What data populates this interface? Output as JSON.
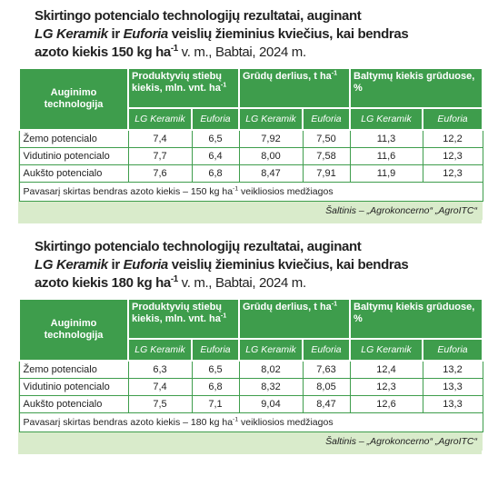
{
  "tables": [
    {
      "title": [
        [
          {
            "text": "Skirtingo potencialo technologijų rezultatai, auginant"
          }
        ],
        [
          {
            "text": "LG Keramik",
            "italic": true
          },
          {
            "text": " ir "
          },
          {
            "text": "Euforia",
            "italic": true
          },
          {
            "text": " veislių žieminius kviečius, kai bendras"
          }
        ],
        [
          {
            "text": "azoto kiekis 150 kg ha"
          },
          {
            "text": "-1",
            "sup": true
          },
          {
            "text": " v. m., Babtai, 2024 m.",
            "plain": true
          }
        ]
      ],
      "header": {
        "technology": "Auginimo technologija",
        "groups": [
          {
            "text": "Produktyvių stiebų kiekis, mln. vnt. ha",
            "sup": "-1"
          },
          {
            "text": "Grūdų derlius, t ha",
            "sup": "-1"
          },
          {
            "text": "Baltymų kiekis grūduose, %"
          }
        ],
        "varieties": [
          "LG Keramik",
          "Euforia",
          "LG Keramik",
          "Euforia",
          "LG Keramik",
          "Euforia"
        ]
      },
      "rows": [
        [
          "Žemo potencialo",
          "7,4",
          "6,5",
          "7,92",
          "7,50",
          "11,3",
          "12,2"
        ],
        [
          "Vidutinio potencialo",
          "7,7",
          "6,4",
          "8,00",
          "7,58",
          "11,6",
          "12,3"
        ],
        [
          "Aukšto potencialo",
          "7,6",
          "6,8",
          "8,47",
          "7,91",
          "11,9",
          "12,3"
        ]
      ],
      "note": {
        "text": "Pavasarį skirtas bendras azoto kiekis – 150 kg ha",
        "sup": "-1",
        "after": " veikliosios medžiagos"
      },
      "source": "Šaltinis – „Agrokoncerno“ „AgroITC“"
    },
    {
      "title": [
        [
          {
            "text": "Skirtingo potencialo technologijų rezultatai, auginant"
          }
        ],
        [
          {
            "text": "LG Keramik",
            "italic": true
          },
          {
            "text": " ir "
          },
          {
            "text": "Euforia",
            "italic": true
          },
          {
            "text": " veislių žieminius kviečius, kai bendras"
          }
        ],
        [
          {
            "text": "azoto kiekis 180 kg ha"
          },
          {
            "text": "-1",
            "sup": true
          },
          {
            "text": " v. m., Babtai, 2024 m.",
            "plain": true
          }
        ]
      ],
      "header": {
        "technology": "Auginimo technologija",
        "groups": [
          {
            "text": "Produktyvių stiebų kiekis, mln. vnt. ha",
            "sup": "-1"
          },
          {
            "text": "Grūdų derlius, t ha",
            "sup": "-1"
          },
          {
            "text": "Baltymų kiekis grūduose, %"
          }
        ],
        "varieties": [
          "LG Keramik",
          "Euforia",
          "LG Keramik",
          "Euforia",
          "LG Keramik",
          "Euforia"
        ]
      },
      "rows": [
        [
          "Žemo potencialo",
          "6,3",
          "6,5",
          "8,02",
          "7,63",
          "12,4",
          "13,2"
        ],
        [
          "Vidutinio potencialo",
          "7,4",
          "6,8",
          "8,32",
          "8,05",
          "12,3",
          "13,3"
        ],
        [
          "Aukšto potencialo",
          "7,5",
          "7,1",
          "9,04",
          "8,47",
          "12,6",
          "13,3"
        ]
      ],
      "note": {
        "text": "Pavasarį skirtas bendras azoto kiekis – 180 kg ha",
        "sup": "-1",
        "after": " veikliosios medžiagos"
      },
      "source": "Šaltinis – „Agrokoncerno“ „AgroITC“"
    }
  ]
}
